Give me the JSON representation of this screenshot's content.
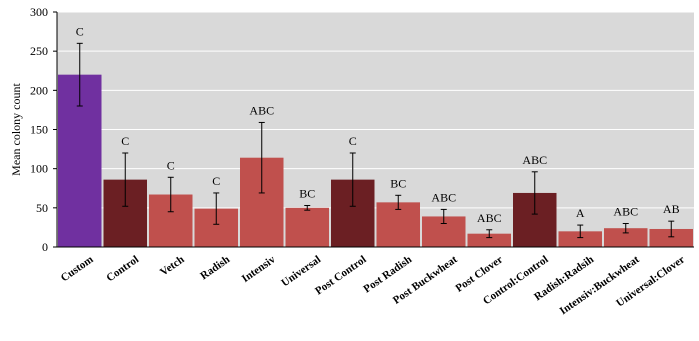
{
  "chart_data": {
    "type": "bar",
    "title": "",
    "xlabel": "",
    "ylabel": "Mean colony count",
    "ylim": [
      0,
      300
    ],
    "yticks": [
      0,
      50,
      100,
      150,
      200,
      250,
      300
    ],
    "grid": true,
    "legend": "none",
    "colors": {
      "background": "#d9d9d9",
      "gridline": "#ffffff",
      "custom": "#7030a0",
      "control": "#6b1f23",
      "treatment": "#c0504d"
    },
    "categories": [
      "Custom",
      "Control",
      "Vetch",
      "Radish",
      "Intensiv",
      "Universal",
      "Post Control",
      "Post Radish",
      "Post Buckwheat",
      "Post Clover",
      "Control:Control",
      "Radish:Radsih",
      "Intensiv:Buckwheat",
      "Universal:Clover"
    ],
    "values": [
      220,
      86,
      67,
      49,
      114,
      50,
      86,
      57,
      39,
      17,
      69,
      20,
      24,
      23
    ],
    "error": [
      40,
      34,
      22,
      20,
      45,
      3,
      34,
      9,
      9,
      5,
      27,
      8,
      6,
      10
    ],
    "significance": [
      "C",
      "C",
      "C",
      "C",
      "ABC",
      "BC",
      "C",
      "BC",
      "ABC",
      "ABC",
      "ABC",
      "A",
      "ABC",
      "AB"
    ],
    "color_keys": [
      "custom",
      "control",
      "treatment",
      "treatment",
      "treatment",
      "treatment",
      "control",
      "treatment",
      "treatment",
      "treatment",
      "control",
      "treatment",
      "treatment",
      "treatment"
    ]
  }
}
